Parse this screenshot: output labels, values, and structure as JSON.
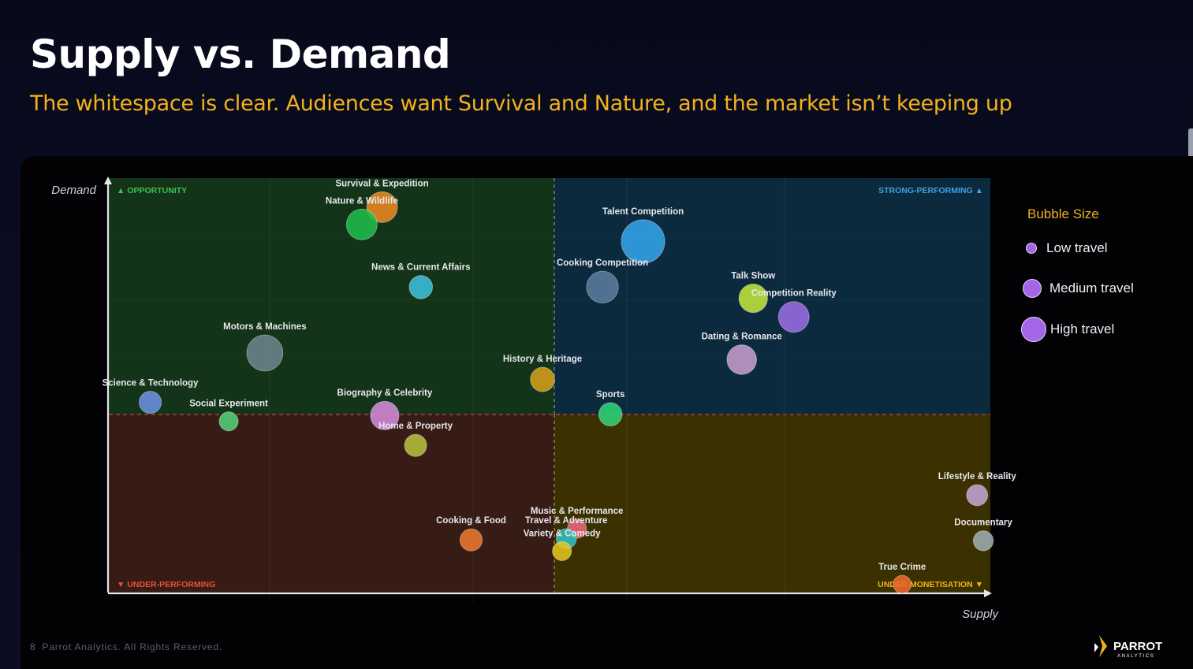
{
  "header": {
    "title": "Supply vs. Demand",
    "subtitle": "The whitespace is clear. Audiences want Survival and Nature, and the market isn’t keeping up"
  },
  "chart_data": {
    "type": "scatter",
    "bubble": true,
    "xlabel": "Supply",
    "ylabel": "Demand",
    "quadrants": {
      "top_left": {
        "label": "▲ OPPORTUNITY",
        "color": "#133418",
        "text_color": "#3fc24e"
      },
      "top_right": {
        "label": "STRONG-PERFORMING ▲",
        "color": "#0b2a3d",
        "text_color": "#3fa0e3"
      },
      "bottom_left": {
        "label": "▼ UNDER-PERFORMING",
        "color": "#371b15",
        "text_color": "#e8503a"
      },
      "bottom_right": {
        "label": "UNDER-MONETISATION ▼",
        "color": "#3a3000",
        "text_color": "#f0b61b"
      }
    },
    "grid": true,
    "points": [
      {
        "label": "Survival & Expedition",
        "x": 0.31,
        "y": 0.93,
        "size": 1.0,
        "color": "#f08a24"
      },
      {
        "label": "Nature & Wildlife",
        "x": 0.287,
        "y": 0.888,
        "size": 1.0,
        "color": "#20c04a"
      },
      {
        "label": "Talent Competition",
        "x": 0.606,
        "y": 0.847,
        "size": 1.6,
        "color": "#34a6ee"
      },
      {
        "label": "News & Current Affairs",
        "x": 0.354,
        "y": 0.737,
        "size": 0.65,
        "color": "#3cc3e0"
      },
      {
        "label": "Cooking Competition",
        "x": 0.56,
        "y": 0.737,
        "size": 1.05,
        "color": "#5c7da1"
      },
      {
        "label": "Talk Show",
        "x": 0.731,
        "y": 0.71,
        "size": 0.9,
        "color": "#c6ea3c"
      },
      {
        "label": "Competition Reality",
        "x": 0.777,
        "y": 0.665,
        "size": 1.0,
        "color": "#9d6ee6"
      },
      {
        "label": "Motors & Machines",
        "x": 0.177,
        "y": 0.578,
        "size": 1.25,
        "color": "#6e868e"
      },
      {
        "label": "Dating & Romance",
        "x": 0.718,
        "y": 0.562,
        "size": 0.95,
        "color": "#caa0ce"
      },
      {
        "label": "History & Heritage",
        "x": 0.492,
        "y": 0.514,
        "size": 0.7,
        "color": "#d9a21e"
      },
      {
        "label": "Science & Technology",
        "x": 0.047,
        "y": 0.459,
        "size": 0.6,
        "color": "#6e92e6"
      },
      {
        "label": "Biography & Celebrity",
        "x": 0.313,
        "y": 0.427,
        "size": 0.9,
        "color": "#d88ce0"
      },
      {
        "label": "Sports",
        "x": 0.569,
        "y": 0.43,
        "size": 0.65,
        "color": "#2ed67a"
      },
      {
        "label": "Social Experiment",
        "x": 0.136,
        "y": 0.413,
        "size": 0.45,
        "color": "#52d678"
      },
      {
        "label": "Home & Property",
        "x": 0.348,
        "y": 0.355,
        "size": 0.6,
        "color": "#b8c43a"
      },
      {
        "label": "Lifestyle & Reality",
        "x": 0.985,
        "y": 0.235,
        "size": 0.55,
        "color": "#c8a6d8"
      },
      {
        "label": "Music & Performance",
        "x": 0.531,
        "y": 0.154,
        "size": 0.45,
        "color": "#f06a80"
      },
      {
        "label": "Travel & Adventure",
        "x": 0.519,
        "y": 0.13,
        "size": 0.5,
        "color": "#30c4c4"
      },
      {
        "label": "Cooking & Food",
        "x": 0.411,
        "y": 0.127,
        "size": 0.6,
        "color": "#f07a30"
      },
      {
        "label": "Documentary",
        "x": 0.992,
        "y": 0.125,
        "size": 0.5,
        "color": "#9fb0b5"
      },
      {
        "label": "Variety & Comedy",
        "x": 0.514,
        "y": 0.1,
        "size": 0.45,
        "color": "#e8c71e"
      },
      {
        "label": "True Crime",
        "x": 0.9,
        "y": 0.02,
        "size": 0.4,
        "color": "#f06a2a"
      }
    ],
    "legend": {
      "title": "Bubble Size",
      "placement": "right",
      "items": [
        {
          "label": "Low travel"
        },
        {
          "label": "Medium travel"
        },
        {
          "label": "High travel"
        }
      ]
    }
  },
  "footer": {
    "page_number": "8",
    "copyright": "Parrot Analytics. All Rights Reserved."
  },
  "logo": {
    "name": "PARROT",
    "tagline": "ANALYTICS",
    "icon": "parrot-logo-icon"
  }
}
